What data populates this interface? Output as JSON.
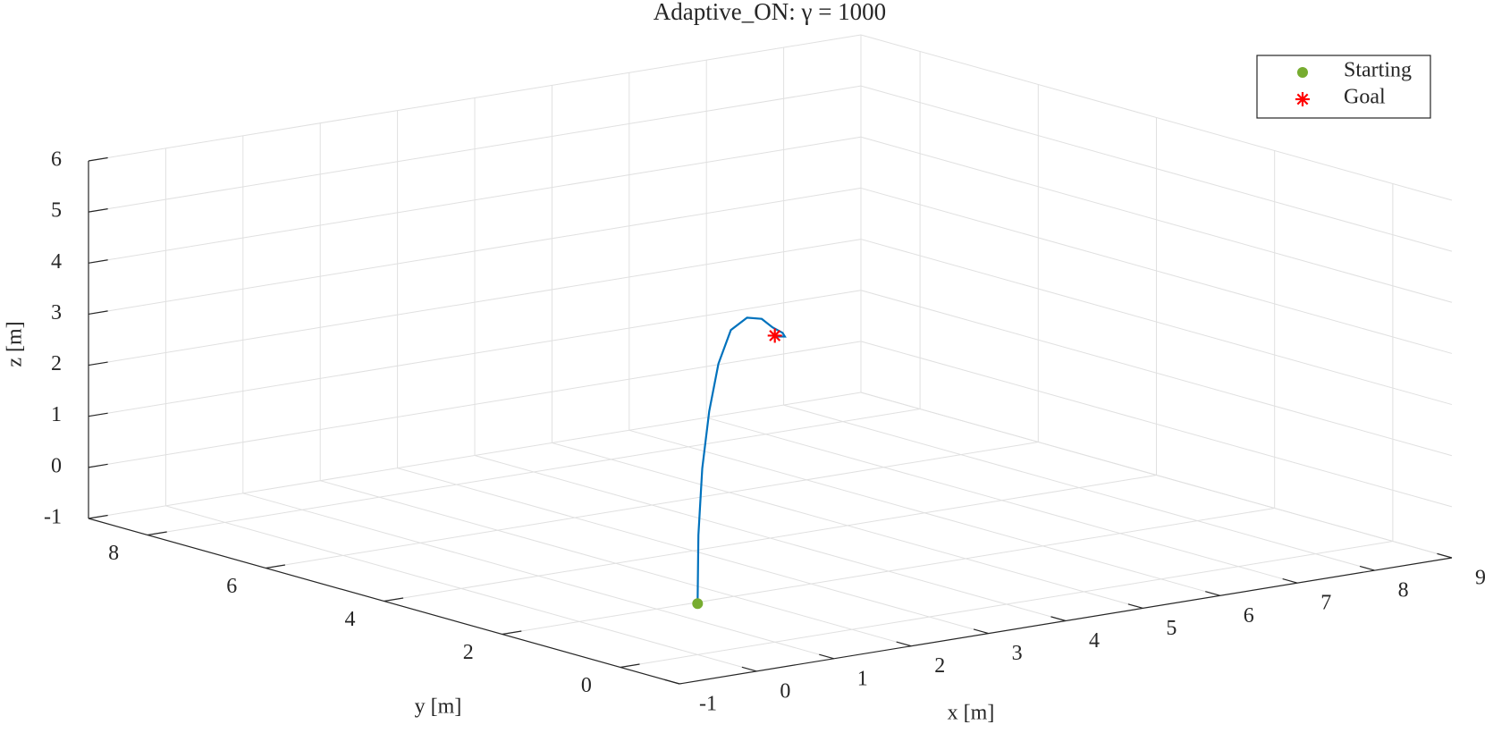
{
  "chart_data": {
    "type": "line3d",
    "title": "Adaptive_ON: γ = 1000",
    "xlabel": "x [m]",
    "ylabel": "y [m]",
    "zlabel": "z [m]",
    "xlim": [
      -1,
      9
    ],
    "ylim": [
      -1,
      9
    ],
    "zlim": [
      -1,
      6
    ],
    "xticks": [
      -1,
      0,
      1,
      2,
      3,
      4,
      5,
      6,
      7,
      8,
      9
    ],
    "yticks": [
      0,
      2,
      4,
      6,
      8
    ],
    "zticks": [
      -1,
      0,
      1,
      2,
      3,
      4,
      5,
      6
    ],
    "grid": true,
    "legend": "northeast",
    "trajectory": {
      "color": "#0072bd",
      "x": [
        0,
        0.01,
        0.06,
        0.15,
        0.27,
        0.43,
        0.64,
        0.83,
        0.97,
        1.1,
        1.13,
        1.01,
        1
      ],
      "y": [
        0,
        0,
        0,
        0,
        0,
        0,
        0,
        0,
        0,
        0,
        0,
        0,
        0
      ],
      "z": [
        0,
        1.34,
        2.63,
        3.73,
        4.63,
        5.25,
        5.44,
        5.37,
        5.17,
        5.03,
        4.95,
        4.98,
        5
      ]
    },
    "start": {
      "name": "Starting",
      "color": "#77ac30",
      "x": 0,
      "y": 0,
      "z": 0
    },
    "goal": {
      "name": "Goal",
      "color": "#ff0000",
      "x": 1,
      "y": 0,
      "z": 5
    }
  }
}
